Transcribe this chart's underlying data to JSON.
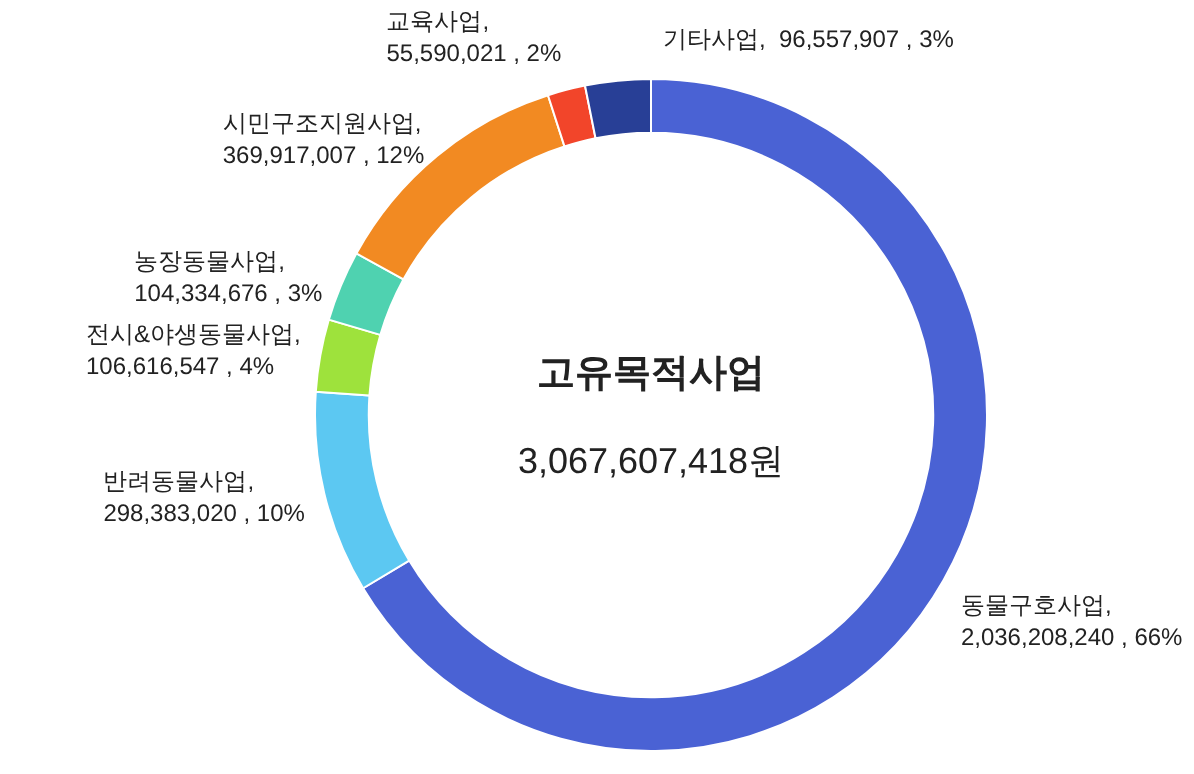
{
  "chart_data": {
    "type": "donut",
    "categories": [
      "동물구호사업",
      "반려동물사업",
      "전시&야생동물사업",
      "농장동물사업",
      "시민구조지원사업",
      "교육사업",
      "기타사업"
    ],
    "values": [
      2036208240,
      298383020,
      106616547,
      104334676,
      369917007,
      55590021,
      96557907
    ],
    "colors": [
      "#4a62d4",
      "#5cc8f2",
      "#9ee23c",
      "#4fd2b0",
      "#f28a22",
      "#f2452a",
      "#283f96"
    ],
    "value_labels": [
      ",\n2,036,208,240 , 66%",
      ",\n298,383,020 , 10%",
      ",\n106,616,547 , 4%",
      ",\n104,334,676 , 3%",
      ",\n369,917,007 , 12%",
      ",\n55,590,021 , 2%",
      ",\n96,557,907 , 3%"
    ],
    "annotations": [
      "고유목적사업",
      "3,067,607,418원"
    ],
    "legend": false
  }
}
